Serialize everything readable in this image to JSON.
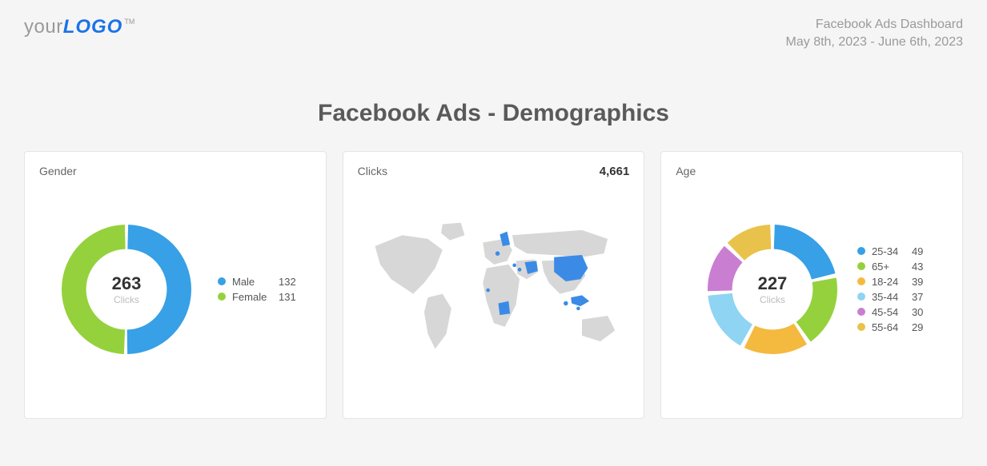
{
  "header": {
    "logo_your": "your",
    "logo_bold": "LOGO",
    "logo_tm": "TM",
    "title": "Facebook Ads Dashboard",
    "date_range": "May 8th, 2023 - June 6th, 2023"
  },
  "page_title": "Facebook Ads - Demographics",
  "gender_card": {
    "title": "Gender",
    "center_value": "263",
    "center_label": "Clicks",
    "chart": {
      "type": "donut",
      "segments": [
        {
          "label": "Male",
          "value": 132,
          "color": "#37a0e6"
        },
        {
          "label": "Female",
          "value": 131,
          "color": "#95d13c"
        }
      ],
      "inner_radius": 56,
      "outer_radius": 90,
      "gap_deg": 3,
      "background": "#ffffff"
    }
  },
  "clicks_card": {
    "title": "Clicks",
    "metric": "4,661",
    "map": {
      "land_color": "#d7d7d7",
      "highlight_color": "#3b8be6",
      "background": "#ffffff"
    }
  },
  "age_card": {
    "title": "Age",
    "center_value": "227",
    "center_label": "Clicks",
    "chart": {
      "type": "donut",
      "segments": [
        {
          "label": "25-34",
          "value": 49,
          "color": "#37a0e6"
        },
        {
          "label": "65+",
          "value": 43,
          "color": "#95d13c"
        },
        {
          "label": "18-24",
          "value": 39,
          "color": "#f4b93f"
        },
        {
          "label": "35-44",
          "value": 37,
          "color": "#8fd4f2"
        },
        {
          "label": "45-54",
          "value": 30,
          "color": "#c97ed2"
        },
        {
          "label": "55-64",
          "value": 29,
          "color": "#e8c24b"
        }
      ],
      "inner_radius": 56,
      "outer_radius": 90,
      "gap_deg": 4,
      "background": "#ffffff"
    }
  }
}
